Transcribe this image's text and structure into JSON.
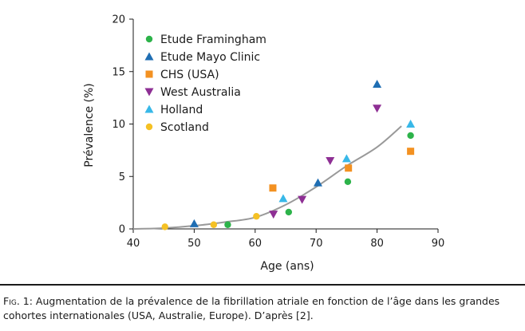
{
  "chart_data": {
    "type": "scatter",
    "xlabel": "Age (ans)",
    "ylabel": "Prévalence (%)",
    "xlim": [
      40,
      90
    ],
    "ylim": [
      0,
      20
    ],
    "x_ticks": [
      "40",
      "50",
      "60",
      "70",
      "80",
      "90"
    ],
    "y_ticks": [
      "0",
      "5",
      "10",
      "15",
      "20"
    ],
    "grid": false,
    "legend_position": "top-left",
    "series": [
      {
        "name": "Etude Framingham",
        "marker": "circle",
        "color": "#2db34a",
        "points": [
          [
            55.5,
            0.4
          ],
          [
            65.5,
            1.6
          ],
          [
            75.2,
            4.5
          ],
          [
            85.5,
            8.9
          ]
        ]
      },
      {
        "name": "Etude Mayo Clinic",
        "marker": "triangle-up",
        "color": "#1f6eb3",
        "points": [
          [
            50,
            0.5
          ],
          [
            70.3,
            4.4
          ],
          [
            80,
            13.8
          ]
        ]
      },
      {
        "name": "CHS (USA)",
        "marker": "square",
        "color": "#f39121",
        "points": [
          [
            62.9,
            3.9
          ],
          [
            75.3,
            5.8
          ],
          [
            85.5,
            7.4
          ]
        ]
      },
      {
        "name": "West Australia",
        "marker": "triangle-down",
        "color": "#8e2f94",
        "points": [
          [
            63,
            1.4
          ],
          [
            67.7,
            2.8
          ],
          [
            72.3,
            6.5
          ],
          [
            80,
            11.5
          ]
        ]
      },
      {
        "name": "Holland",
        "marker": "triangle-up",
        "color": "#38b8e8",
        "points": [
          [
            64.6,
            2.9
          ],
          [
            75,
            6.7
          ],
          [
            85.5,
            10
          ]
        ]
      },
      {
        "name": "Scotland",
        "marker": "circle",
        "color": "#f5c124",
        "points": [
          [
            45.2,
            0.2
          ],
          [
            53.2,
            0.4
          ],
          [
            60.2,
            1.2
          ]
        ]
      }
    ],
    "trend_line": {
      "color": "#999999",
      "points": [
        [
          40,
          0
        ],
        [
          45,
          0.08
        ],
        [
          50,
          0.3
        ],
        [
          55,
          0.65
        ],
        [
          60,
          1.1
        ],
        [
          65,
          2.3
        ],
        [
          70,
          4.0
        ],
        [
          75,
          6.0
        ],
        [
          80,
          7.8
        ],
        [
          84,
          9.8
        ]
      ]
    }
  },
  "caption": {
    "label": "Fig. 1:",
    "text": "Augmentation de la prévalence de la fibrillation atriale en fonction de l’âge dans les grandes cohortes internationales (USA, Australie, Europe). D’après [2]."
  }
}
